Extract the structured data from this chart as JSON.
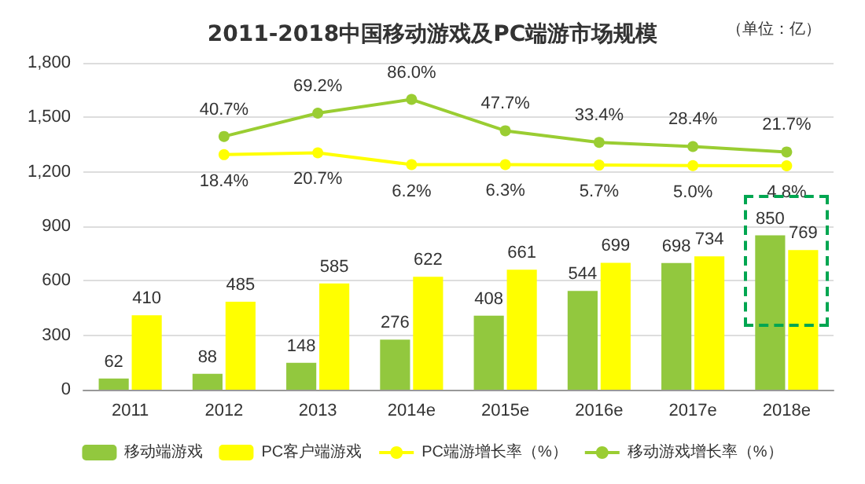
{
  "chart_data": {
    "type": "bar",
    "title": "2011-2018中国移动游戏及PC端游市场规模",
    "annotations": [
      "（单位：亿）"
    ],
    "categories": [
      "2011",
      "2012",
      "2013",
      "2014e",
      "2015e",
      "2016e",
      "2017e",
      "2018e"
    ],
    "series": [
      {
        "name": "移动端游戏",
        "color": "#92c83e",
        "values": [
          62,
          88,
          148,
          276,
          408,
          544,
          698,
          850
        ]
      },
      {
        "name": "PC客户端游戏",
        "color": "#ffff00",
        "values": [
          410,
          485,
          585,
          622,
          661,
          699,
          734,
          769
        ]
      },
      {
        "name": "PC端游增长率（%）",
        "type": "line",
        "axis": "y2",
        "color": "#ffff00",
        "values": [
          null,
          18.4,
          20.7,
          6.2,
          6.3,
          5.7,
          5.0,
          4.8
        ],
        "value_labels": [
          null,
          "18.4%",
          "20.7%",
          "6.2%",
          "6.3%",
          "5.7%",
          "5.0%",
          "4.8%"
        ]
      },
      {
        "name": "移动游戏增长率（%）",
        "type": "line",
        "axis": "y2",
        "color": "#9acd32",
        "values": [
          null,
          40.7,
          69.2,
          86.0,
          47.7,
          33.4,
          28.4,
          21.7
        ],
        "value_labels": [
          null,
          "40.7%",
          "69.2%",
          "86.0%",
          "47.7%",
          "33.4%",
          "28.4%",
          "21.7%"
        ]
      }
    ],
    "ylim": [
      0,
      1800
    ],
    "yticks": [
      0,
      {
        "value": 300,
        "label": "300"
      },
      {
        "value": 600,
        "label": "600"
      },
      {
        "value": 900,
        "label": "900"
      },
      {
        "value": 1200,
        "label": "1,200"
      },
      {
        "value": 1500,
        "label": "1,500"
      },
      {
        "value": 1800,
        "label": "1,800"
      }
    ],
    "grid": "y",
    "legend": "bottom",
    "data_labels": true,
    "marker": "circle"
  }
}
